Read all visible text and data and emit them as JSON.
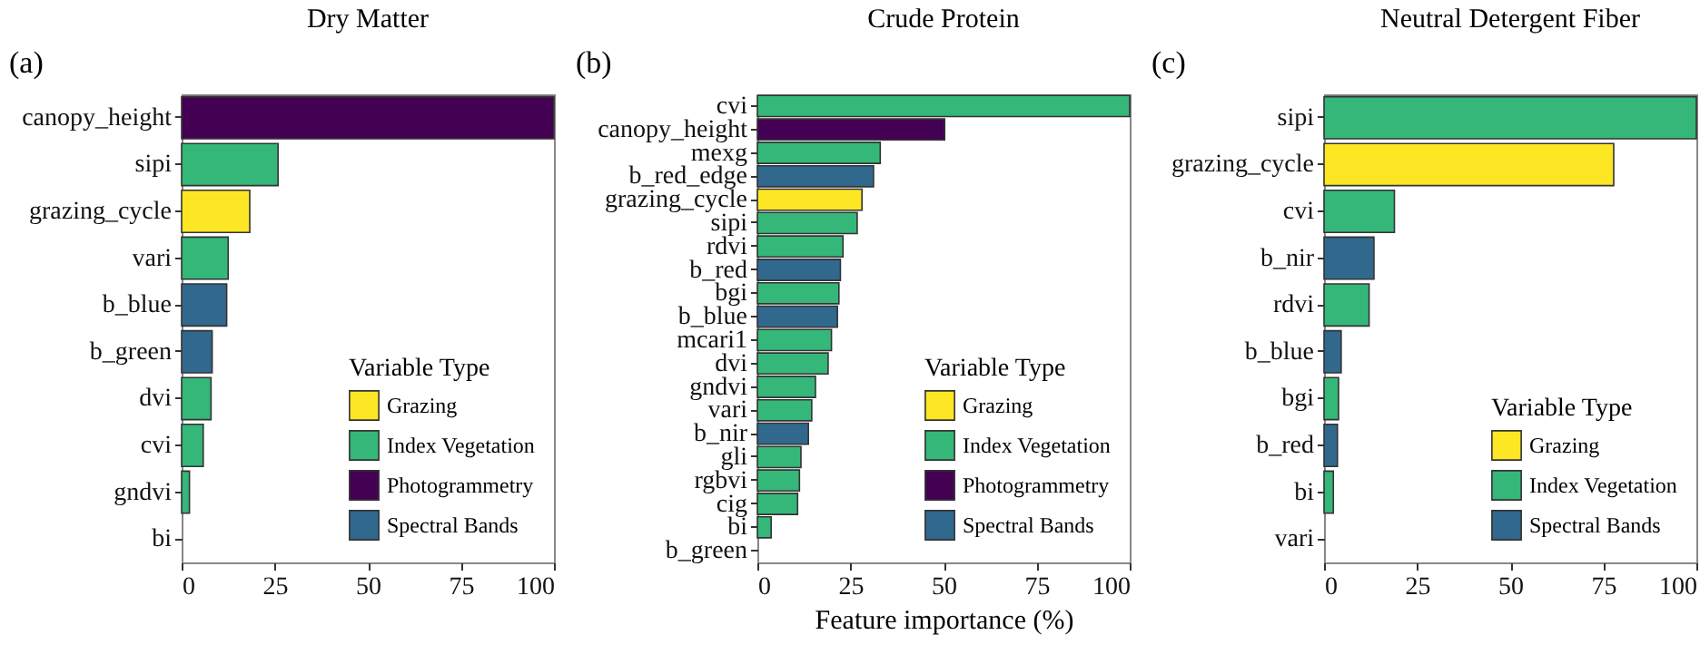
{
  "chart_data": [
    {
      "type": "bar",
      "orientation": "horizontal",
      "stacked": true,
      "title": "Dry Matter",
      "annotations": [
        "(a)"
      ],
      "categories": [
        "canopy_height",
        "sipi",
        "grazing_cycle",
        "vari",
        "b_blue",
        "b_green",
        "dvi",
        "cvi",
        "gndvi",
        "bi"
      ],
      "series": [
        {
          "name": "Grazing",
          "color": "#fde725",
          "values": [
            null,
            null,
            18.3,
            null,
            null,
            null,
            null,
            null,
            null,
            null
          ]
        },
        {
          "name": "Index Vegetation",
          "color": "#35b779",
          "values": [
            null,
            25.9,
            null,
            12.5,
            null,
            null,
            7.9,
            5.8,
            2.1,
            0
          ]
        },
        {
          "name": "Photogrammetry",
          "color": "#440154",
          "values": [
            100,
            null,
            null,
            null,
            null,
            null,
            null,
            null,
            null,
            null
          ]
        },
        {
          "name": "Spectral Bands",
          "color": "#31688e",
          "values": [
            null,
            null,
            null,
            null,
            12.1,
            8.2,
            null,
            null,
            null,
            null
          ]
        }
      ],
      "xlim": [
        0,
        100
      ],
      "xticks": [
        0,
        25,
        50,
        75,
        100
      ],
      "legend": "bottom right",
      "legend_title": "Variable Type"
    },
    {
      "type": "bar",
      "orientation": "horizontal",
      "stacked": true,
      "title": "Crude Protein",
      "xlabel": "Feature importance (%)",
      "annotations": [
        "(b)"
      ],
      "categories": [
        "cvi",
        "canopy_height",
        "mexg",
        "b_red_edge",
        "grazing_cycle",
        "sipi",
        "rdvi",
        "b_red",
        "bgi",
        "b_blue",
        "mcari1",
        "dvi",
        "gndvi",
        "vari",
        "b_nir",
        "gli",
        "rgbvi",
        "cig",
        "bi",
        "b_green"
      ],
      "series": [
        {
          "name": "Grazing",
          "color": "#fde725",
          "values": [
            null,
            null,
            null,
            null,
            28.1,
            null,
            null,
            null,
            null,
            null,
            null,
            null,
            null,
            null,
            null,
            null,
            null,
            null,
            null,
            null
          ]
        },
        {
          "name": "Index Vegetation",
          "color": "#35b779",
          "values": [
            100,
            null,
            33,
            null,
            null,
            26.8,
            23,
            null,
            21.9,
            null,
            19.9,
            19,
            15.6,
            14.6,
            null,
            11.7,
            11.3,
            10.8,
            3.7,
            null
          ]
        },
        {
          "name": "Photogrammetry",
          "color": "#440154",
          "values": [
            null,
            50.3,
            null,
            null,
            null,
            null,
            null,
            null,
            null,
            null,
            null,
            null,
            null,
            null,
            null,
            null,
            null,
            null,
            null,
            null
          ]
        },
        {
          "name": "Spectral Bands",
          "color": "#31688e",
          "values": [
            null,
            null,
            null,
            31.2,
            null,
            null,
            null,
            22.3,
            null,
            21.5,
            null,
            null,
            null,
            null,
            13.7,
            null,
            null,
            null,
            null,
            0
          ]
        }
      ],
      "xlim": [
        0,
        100
      ],
      "xticks": [
        0,
        25,
        50,
        75,
        100
      ],
      "legend": "bottom right",
      "legend_title": "Variable Type"
    },
    {
      "type": "bar",
      "orientation": "horizontal",
      "stacked": true,
      "title": "Neutral Detergent Fiber",
      "annotations": [
        "(c)"
      ],
      "categories": [
        "sipi",
        "grazing_cycle",
        "cvi",
        "b_nir",
        "rdvi",
        "b_blue",
        "bgi",
        "b_red",
        "bi",
        "vari"
      ],
      "series": [
        {
          "name": "Grazing",
          "color": "#fde725",
          "values": [
            null,
            77.8,
            null,
            null,
            null,
            null,
            null,
            null,
            null,
            null
          ]
        },
        {
          "name": "Index Vegetation",
          "color": "#35b779",
          "values": [
            100,
            null,
            18.9,
            null,
            12.1,
            null,
            3.9,
            null,
            2.5,
            0
          ]
        },
        {
          "name": "Spectral Bands",
          "color": "#31688e",
          "values": [
            null,
            null,
            null,
            13.4,
            null,
            4.6,
            null,
            3.6,
            null,
            null
          ]
        }
      ],
      "xlim": [
        0,
        100
      ],
      "xticks": [
        0,
        25,
        50,
        75,
        100
      ],
      "legend": "bottom right",
      "legend_title": "Variable Type"
    }
  ]
}
